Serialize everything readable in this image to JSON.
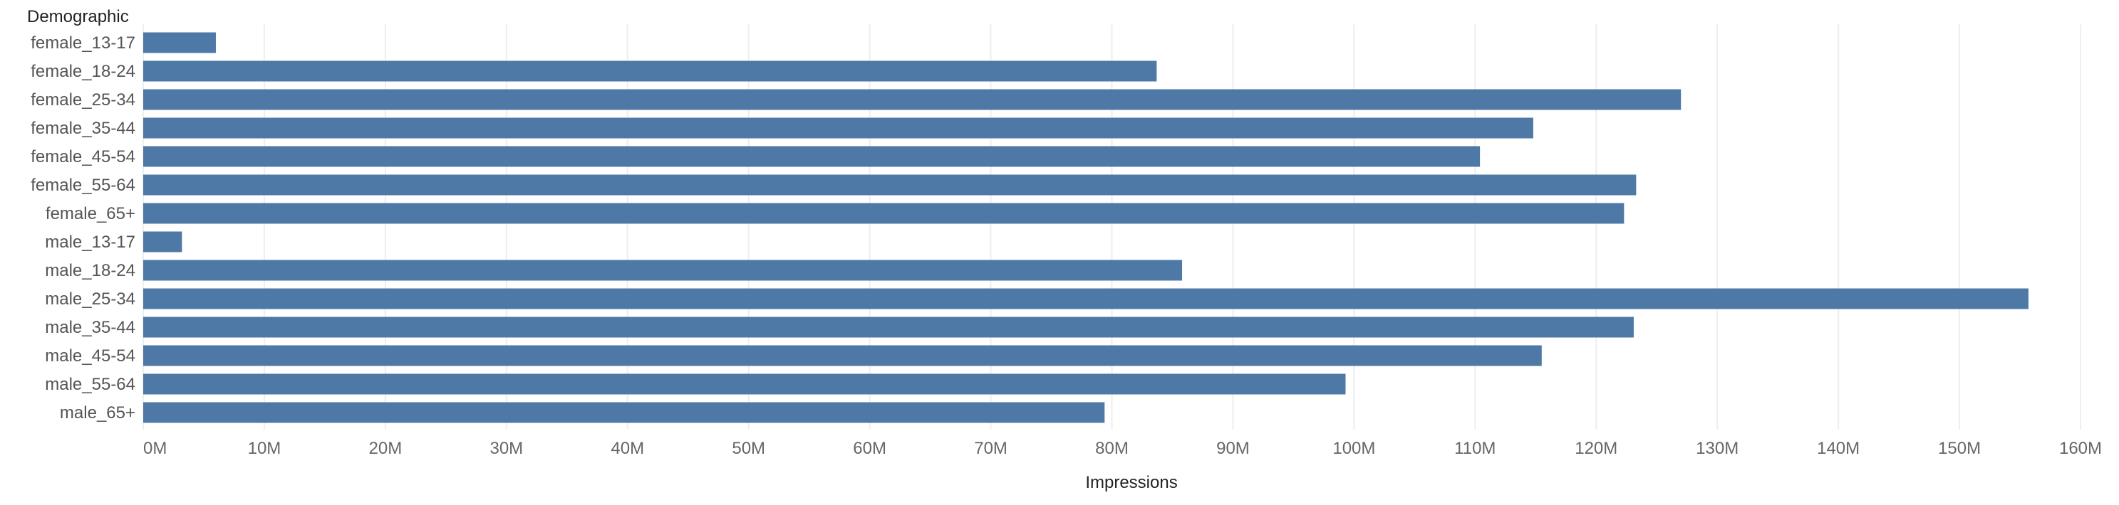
{
  "chart_data": {
    "type": "bar",
    "orientation": "horizontal",
    "title": "",
    "ylabel": "Demographic",
    "xlabel": "Impressions",
    "categories": [
      "female_13-17",
      "female_18-24",
      "female_25-34",
      "female_35-44",
      "female_45-54",
      "female_55-64",
      "female_65+",
      "male_13-17",
      "male_18-24",
      "male_25-34",
      "male_35-44",
      "male_45-54",
      "male_55-64",
      "male_65+"
    ],
    "values": [
      6000000,
      83700000,
      127000000,
      114800000,
      110400000,
      123300000,
      122300000,
      3200000,
      85800000,
      155700000,
      123100000,
      115500000,
      99300000,
      79400000
    ],
    "xlim": [
      0,
      160000000
    ],
    "xticks": [
      0,
      10000000,
      20000000,
      30000000,
      40000000,
      50000000,
      60000000,
      70000000,
      80000000,
      90000000,
      100000000,
      110000000,
      120000000,
      130000000,
      140000000,
      150000000,
      160000000
    ],
    "xtick_labels": [
      "0M",
      "10M",
      "20M",
      "30M",
      "40M",
      "50M",
      "60M",
      "70M",
      "80M",
      "90M",
      "100M",
      "110M",
      "120M",
      "130M",
      "140M",
      "150M",
      "160M"
    ],
    "grid": true,
    "bar_color": "#4e79a7"
  }
}
